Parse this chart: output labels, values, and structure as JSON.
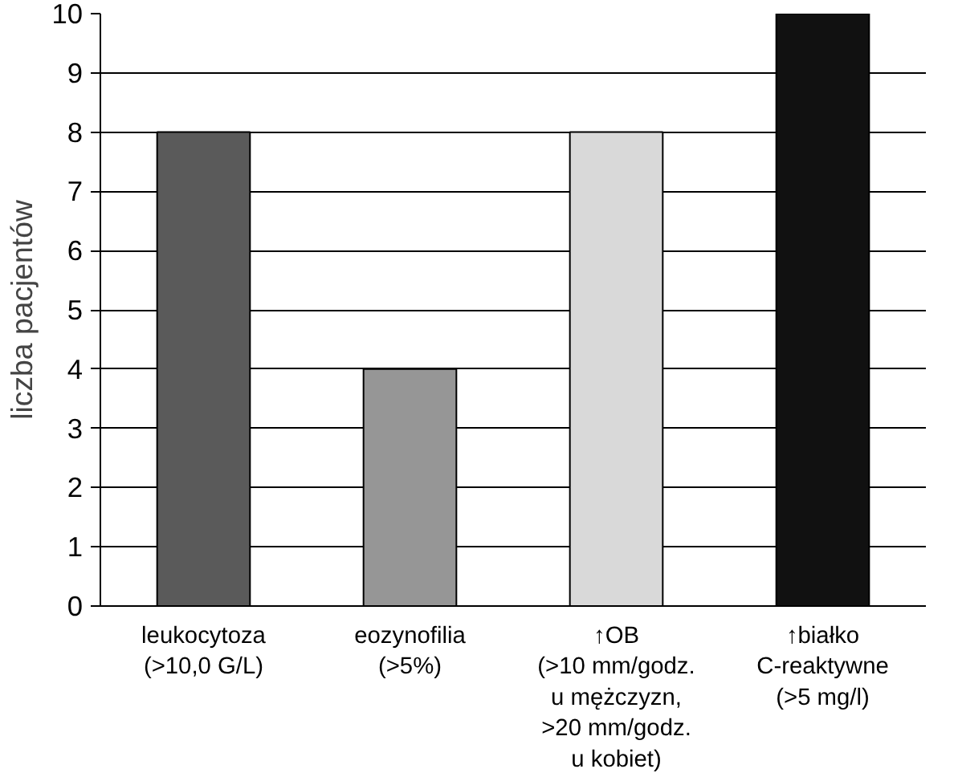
{
  "chart_data": {
    "type": "bar",
    "ylabel": "liczba pacjentów",
    "categories": [
      "leukocytoza\n(>10,0 G/L)",
      "eozynofilia\n(>5%)",
      "↑OB\n(>10 mm/godz.\nu mężczyzn,\n>20 mm/godz.\nu kobiet)",
      "↑białko\nC-reaktywne\n(>5 mg/l)"
    ],
    "values": [
      8,
      4,
      8,
      10
    ],
    "colors": [
      "#5a5a5a",
      "#969696",
      "#d9d9d9",
      "#111111"
    ],
    "ylim": [
      0,
      10
    ],
    "yticks": [
      0,
      1,
      2,
      3,
      4,
      5,
      6,
      7,
      8,
      9,
      10
    ],
    "grid": "y"
  }
}
